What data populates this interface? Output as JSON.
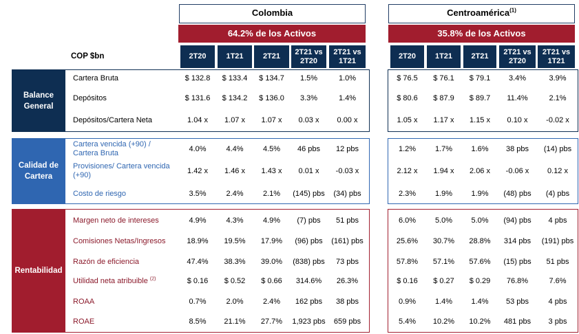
{
  "regions": [
    {
      "name": "Colombia",
      "sup": "",
      "banner": "64.2% de los Activos"
    },
    {
      "name": "Centroamérica",
      "sup": "(1)",
      "banner": "35.8% de los Activos"
    }
  ],
  "table_label": "COP $bn",
  "column_headers": [
    "2T20",
    "1T21",
    "2T21",
    "2T21 vs\n2T20",
    "2T21 vs\n1T21"
  ],
  "sections": [
    {
      "label": "Balance\nGeneral",
      "rows": [
        {
          "metric": "Cartera Bruta",
          "sup": "",
          "colombia": [
            "$ 132.8",
            "$ 133.4",
            "$ 134.7",
            "1.5%",
            "1.0%"
          ],
          "centroamerica": [
            "$ 76.5",
            "$ 76.1",
            "$ 79.1",
            "3.4%",
            "3.9%"
          ]
        },
        {
          "metric": "Depósitos",
          "sup": "",
          "colombia": [
            "$ 131.6",
            "$ 134.2",
            "$ 136.0",
            "3.3%",
            "1.4%"
          ],
          "centroamerica": [
            "$ 80.6",
            "$ 87.9",
            "$ 89.7",
            "11.4%",
            "2.1%"
          ]
        },
        {
          "metric": "Depósitos/Cartera Neta",
          "sup": "",
          "colombia": [
            "1.04 x",
            "1.07 x",
            "1.07 x",
            "0.03 x",
            "0.00 x"
          ],
          "centroamerica": [
            "1.05 x",
            "1.17 x",
            "1.15 x",
            "0.10 x",
            "-0.02 x"
          ]
        }
      ]
    },
    {
      "label": "Calidad de\nCartera",
      "rows": [
        {
          "metric": "Cartera vencida (+90) /\nCartera Bruta",
          "sup": "",
          "colombia": [
            "4.0%",
            "4.4%",
            "4.5%",
            "46 pbs",
            "12 pbs"
          ],
          "centroamerica": [
            "1.2%",
            "1.7%",
            "1.6%",
            "38 pbs",
            "(14) pbs"
          ]
        },
        {
          "metric": "Provisiones/ Cartera vencida\n(+90)",
          "sup": "",
          "colombia": [
            "1.42 x",
            "1.46 x",
            "1.43 x",
            "0.01 x",
            "-0.03 x"
          ],
          "centroamerica": [
            "2.12 x",
            "1.94 x",
            "2.06 x",
            "-0.06 x",
            "0.12 x"
          ]
        },
        {
          "metric": "Costo de riesgo",
          "sup": "",
          "colombia": [
            "3.5%",
            "2.4%",
            "2.1%",
            "(145) pbs",
            "(34) pbs"
          ],
          "centroamerica": [
            "2.3%",
            "1.9%",
            "1.9%",
            "(48) pbs",
            "(4) pbs"
          ]
        }
      ]
    },
    {
      "label": "Rentabilidad",
      "rows": [
        {
          "metric": "Margen neto de intereses",
          "sup": "",
          "colombia": [
            "4.9%",
            "4.3%",
            "4.9%",
            "(7) pbs",
            "51 pbs"
          ],
          "centroamerica": [
            "6.0%",
            "5.0%",
            "5.0%",
            "(94) pbs",
            "4 pbs"
          ]
        },
        {
          "metric": "Comisiones Netas/Ingresos",
          "sup": "",
          "colombia": [
            "18.9%",
            "19.5%",
            "17.9%",
            "(96) pbs",
            "(161) pbs"
          ],
          "centroamerica": [
            "25.6%",
            "30.7%",
            "28.8%",
            "314 pbs",
            "(191) pbs"
          ]
        },
        {
          "metric": "Razón de eficiencia",
          "sup": "",
          "colombia": [
            "47.4%",
            "38.3%",
            "39.0%",
            "(838) pbs",
            "73 pbs"
          ],
          "centroamerica": [
            "57.8%",
            "57.1%",
            "57.6%",
            "(15) pbs",
            "51 pbs"
          ]
        },
        {
          "metric": "Utilidad neta atribuible ",
          "sup": "(2)",
          "colombia": [
            "$ 0.16",
            "$ 0.52",
            "$ 0.66",
            "314.6%",
            "26.3%"
          ],
          "centroamerica": [
            "$ 0.16",
            "$ 0.27",
            "$ 0.29",
            "76.8%",
            "7.6%"
          ]
        },
        {
          "metric": "ROAA",
          "sup": "",
          "colombia": [
            "0.7%",
            "2.0%",
            "2.4%",
            "162 pbs",
            "38 pbs"
          ],
          "centroamerica": [
            "0.9%",
            "1.4%",
            "1.4%",
            "53 pbs",
            "4 pbs"
          ]
        },
        {
          "metric": "ROAE",
          "sup": "",
          "colombia": [
            "8.5%",
            "21.1%",
            "27.7%",
            "1,923 pbs",
            "659 pbs"
          ],
          "centroamerica": [
            "5.4%",
            "10.2%",
            "10.2%",
            "481 pbs",
            "3 pbs"
          ]
        }
      ]
    }
  ],
  "colors": {
    "navy": "#0e2e52",
    "blue": "#2f66b1",
    "crimson": "#a11d2e",
    "text_balance": "#000000",
    "text_calidad": "#2f66b1",
    "text_rentabilidad": "#8b1a2b"
  }
}
